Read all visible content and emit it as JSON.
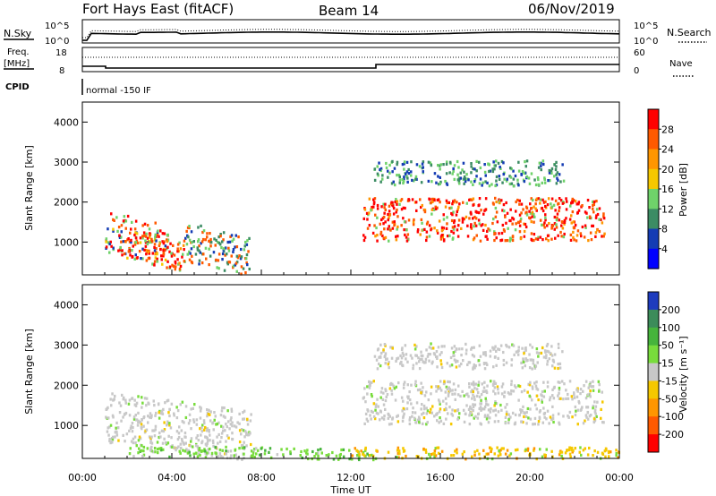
{
  "header": {
    "title": "Fort Hays East (fitACF)",
    "beam": "Beam 14",
    "date": "06/Nov/2019"
  },
  "top_panels": {
    "nsky_label": "N.Sky",
    "nsearch_label": "N.Search",
    "noise_ticks": [
      "10^5",
      "10^0"
    ],
    "freq_label": "Freq.",
    "freq_unit": "[MHz]",
    "freq_ticks": [
      "18",
      "8"
    ],
    "nave_label": "Nave",
    "nave_ticks": [
      "60",
      "0"
    ],
    "cpid_label": "CPID",
    "cpid_text": "normal -150 IF"
  },
  "chart_data": [
    {
      "type": "heatmap",
      "name": "Power",
      "ylabel": "Slant Range [km]",
      "xlabel": "",
      "xlim": [
        0,
        24
      ],
      "ylim": [
        180,
        4500
      ],
      "xticks": [
        "00:00",
        "04:00",
        "08:00",
        "12:00",
        "16:00",
        "20:00",
        "00:00"
      ],
      "yticks": [
        1000,
        2000,
        3000,
        4000
      ],
      "colorbar": {
        "label": "Power [dB]",
        "ticks": [
          "28",
          "24",
          "20",
          "16",
          "12",
          "8",
          "4"
        ],
        "colors": [
          "#ff0000",
          "#ff5a00",
          "#ff9600",
          "#f5c800",
          "#6fd26a",
          "#3c8c64",
          "#143cb4",
          "#0000ff"
        ]
      },
      "regions": [
        {
          "t0": 1.0,
          "t1": 3.8,
          "r0": 500,
          "r1": 1700,
          "level": "mixed"
        },
        {
          "t0": 2.0,
          "t1": 4.5,
          "r0": 400,
          "r1": 1200,
          "level": "high"
        },
        {
          "t0": 4.5,
          "t1": 7.5,
          "r0": 300,
          "r1": 1400,
          "level": "mid"
        },
        {
          "t0": 12.5,
          "t1": 23.3,
          "r0": 1000,
          "r1": 2200,
          "level": "high"
        },
        {
          "t0": 13.0,
          "t1": 21.5,
          "r0": 2400,
          "r1": 3100,
          "level": "low"
        }
      ]
    },
    {
      "type": "heatmap",
      "name": "Velocity",
      "ylabel": "Slant Range [km]",
      "xlabel": "Time UT",
      "xlim": [
        0,
        24
      ],
      "ylim": [
        180,
        4500
      ],
      "xticks": [
        "00:00",
        "04:00",
        "08:00",
        "12:00",
        "16:00",
        "20:00",
        "00:00"
      ],
      "yticks": [
        1000,
        2000,
        3000,
        4000
      ],
      "colorbar": {
        "label": "Velocity [m s⁻¹]",
        "ticks": [
          "200",
          "100",
          "50",
          "15",
          "-15",
          "-50",
          "-100",
          "-200"
        ],
        "colors": [
          "#1e3cbe",
          "#3c8c5a",
          "#46b43c",
          "#78dc3c",
          "#c8c8c8",
          "#f5c800",
          "#ff9600",
          "#ff5a00",
          "#ff0000"
        ]
      },
      "regions": [
        {
          "t0": 1.0,
          "t1": 7.5,
          "r0": 300,
          "r1": 1700,
          "level": "near-zero"
        },
        {
          "t0": 2.0,
          "t1": 13.0,
          "r0": 200,
          "r1": 500,
          "level": "positive-low"
        },
        {
          "t0": 12.5,
          "t1": 23.3,
          "r0": 1000,
          "r1": 2200,
          "level": "near-zero"
        },
        {
          "t0": 13.0,
          "t1": 21.5,
          "r0": 2400,
          "r1": 3100,
          "level": "near-zero"
        },
        {
          "t0": 12.0,
          "t1": 24.0,
          "r0": 180,
          "r1": 500,
          "level": "negative-low"
        }
      ]
    }
  ]
}
